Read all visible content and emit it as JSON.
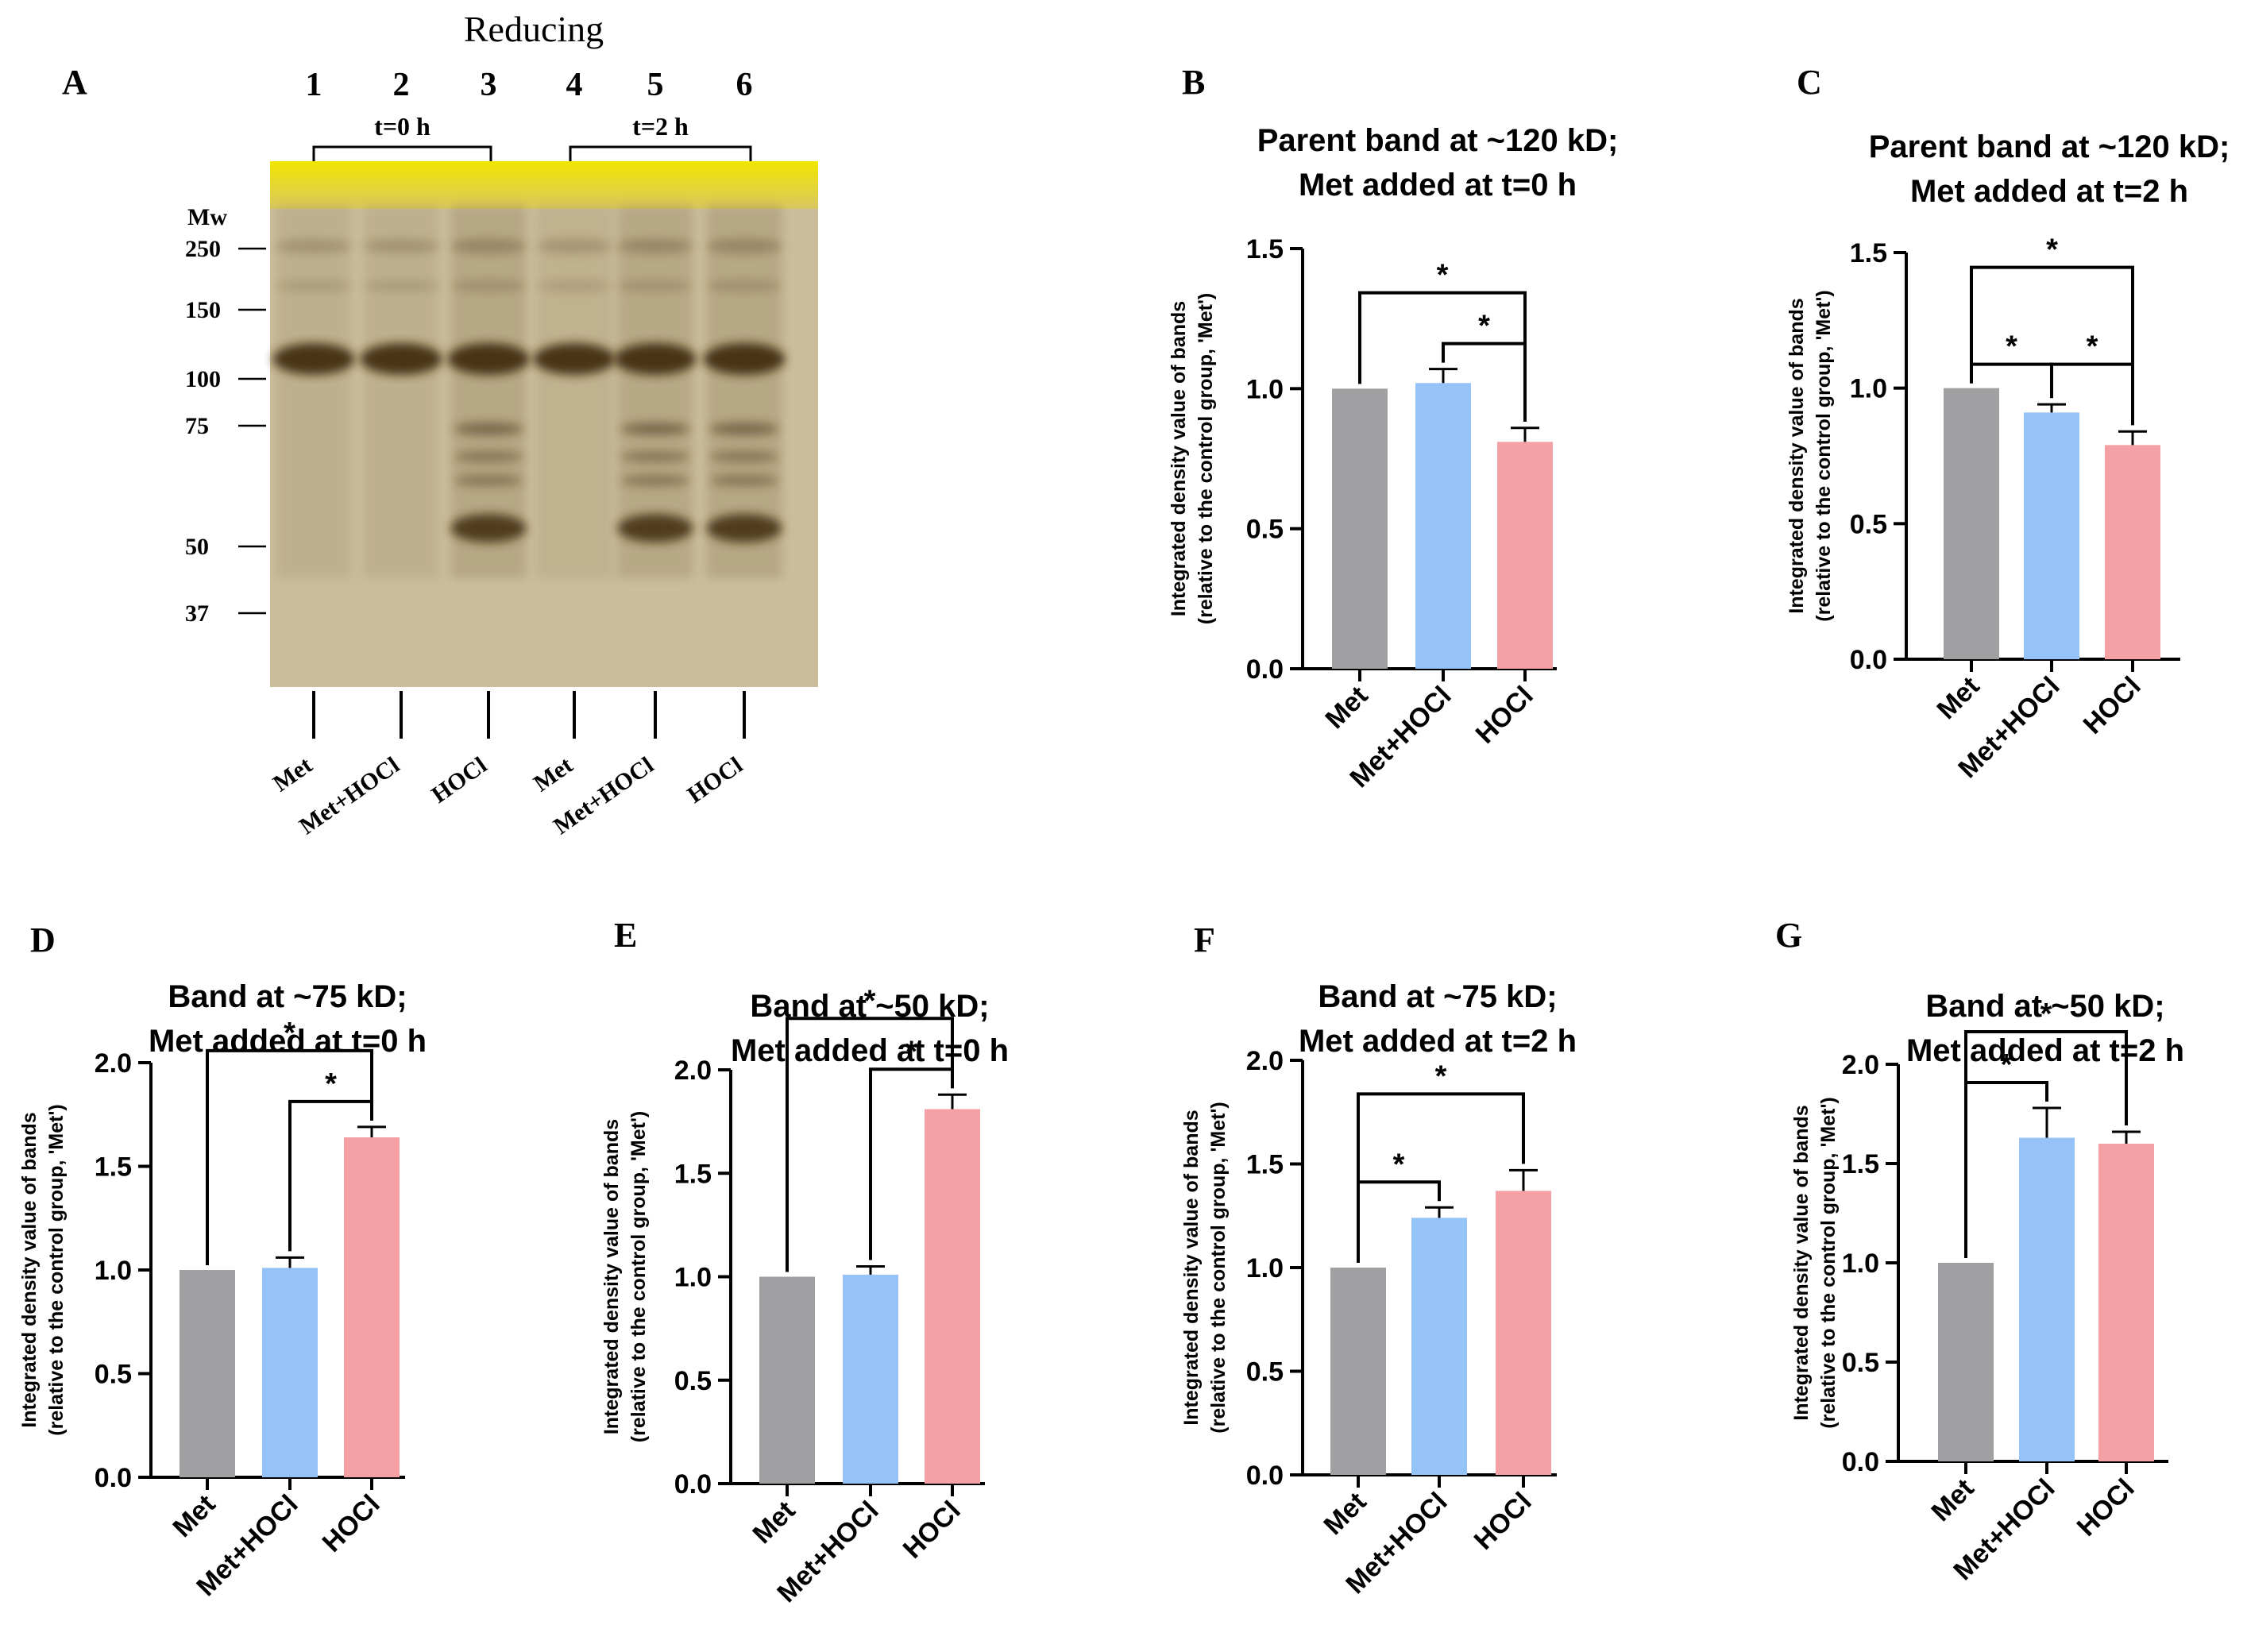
{
  "figure": {
    "gel": {
      "panel_letter": "A",
      "condition_label": "Reducing",
      "mw_label": "Mw",
      "lane_numbers": [
        "1",
        "2",
        "3",
        "4",
        "5",
        "6"
      ],
      "group_labels": [
        "t=0 h",
        "t=2 h"
      ],
      "mw_markers": [
        "250",
        "150",
        "100",
        "75",
        "50",
        "37"
      ],
      "lane_treatments": [
        "Met",
        "Met+HOCl",
        "HOCl",
        "Met",
        "Met+HOCl",
        "HOCl"
      ],
      "colors": {
        "gel_bg": "#cbbd9c",
        "gel_top": "#f2e600",
        "band": "#3f2a0c"
      }
    },
    "colors": {
      "Met": "#a0a0a2",
      "Met+HOCl": "#95c2f7",
      "HOCl": "#f5a0a4",
      "axis": "#000000"
    },
    "significance_symbol": "*"
  },
  "chart_data": [
    {
      "panel": "B",
      "type": "bar",
      "title": [
        "Parent band at ~120 kD;",
        "Met added at t=0 h"
      ],
      "ylabel": [
        "Integrated density value of bands",
        "(relative to the control group, 'Met')"
      ],
      "categories": [
        "Met",
        "Met+HOCl",
        "HOCl"
      ],
      "values": [
        1.0,
        1.02,
        0.81
      ],
      "errors": [
        0,
        0.05,
        0.05
      ],
      "ylim": [
        0,
        1.5
      ],
      "yticks": [
        "0.0",
        "0.5",
        "1.0",
        "1.5"
      ],
      "significance": [
        {
          "from": 1,
          "to": 2,
          "label": "*"
        },
        {
          "from": 0,
          "to": 2,
          "label": "*"
        }
      ]
    },
    {
      "panel": "C",
      "type": "bar",
      "title": [
        "Parent band at ~120 kD;",
        "Met added at t=2 h"
      ],
      "ylabel": [
        "Integrated density value of bands",
        "(relative to the control group, 'Met')"
      ],
      "categories": [
        "Met",
        "Met+HOCl",
        "HOCl"
      ],
      "values": [
        1.0,
        0.91,
        0.79
      ],
      "errors": [
        0,
        0.03,
        0.05
      ],
      "ylim": [
        0,
        1.5
      ],
      "yticks": [
        "0.0",
        "0.5",
        "1.0",
        "1.5"
      ],
      "significance": [
        {
          "from": 0,
          "to": 1,
          "label": "*"
        },
        {
          "from": 1,
          "to": 2,
          "label": "*"
        },
        {
          "from": 0,
          "to": 2,
          "label": "*"
        }
      ]
    },
    {
      "panel": "D",
      "type": "bar",
      "title": [
        "Band at ~75 kD;",
        "Met added at t=0 h"
      ],
      "ylabel": [
        "Integrated density value of bands",
        "(relative to the control group, 'Met')"
      ],
      "categories": [
        "Met",
        "Met+HOCl",
        "HOCl"
      ],
      "values": [
        1.0,
        1.01,
        1.64
      ],
      "errors": [
        0,
        0.05,
        0.05
      ],
      "ylim": [
        0,
        2.0
      ],
      "yticks": [
        "0.0",
        "0.5",
        "1.0",
        "1.5",
        "2.0"
      ],
      "significance": [
        {
          "from": 1,
          "to": 2,
          "label": "*"
        },
        {
          "from": 0,
          "to": 2,
          "label": "*"
        }
      ]
    },
    {
      "panel": "E",
      "type": "bar",
      "title": [
        "Band at ~50 kD;",
        "Met added at t=0 h"
      ],
      "ylabel": [
        "Integrated density value of bands",
        "(relative to the control group, 'Met')"
      ],
      "categories": [
        "Met",
        "Met+HOCl",
        "HOCl"
      ],
      "values": [
        1.0,
        1.01,
        1.81
      ],
      "errors": [
        0,
        0.04,
        0.07
      ],
      "ylim": [
        0,
        2.0
      ],
      "yticks": [
        "0.0",
        "0.5",
        "1.0",
        "1.5",
        "2.0"
      ],
      "significance": [
        {
          "from": 1,
          "to": 2,
          "label": "*"
        },
        {
          "from": 0,
          "to": 2,
          "label": "*"
        }
      ]
    },
    {
      "panel": "F",
      "type": "bar",
      "title": [
        "Band at ~75 kD;",
        "Met added at t=2 h"
      ],
      "ylabel": [
        "Integrated density value of bands",
        "(relative to the control group, 'Met')"
      ],
      "categories": [
        "Met",
        "Met+HOCl",
        "HOCl"
      ],
      "values": [
        1.0,
        1.24,
        1.37
      ],
      "errors": [
        0,
        0.05,
        0.1
      ],
      "ylim": [
        0,
        2.0
      ],
      "yticks": [
        "0.0",
        "0.5",
        "1.0",
        "1.5",
        "2.0"
      ],
      "significance": [
        {
          "from": 0,
          "to": 1,
          "label": "*"
        },
        {
          "from": 0,
          "to": 2,
          "label": "*"
        }
      ]
    },
    {
      "panel": "G",
      "type": "bar",
      "title": [
        "Band at ~50 kD;",
        "Met added at t=2 h"
      ],
      "ylabel": [
        "Integrated density value of bands",
        "(relative to the control group, 'Met')"
      ],
      "categories": [
        "Met",
        "Met+HOCl",
        "HOCl"
      ],
      "values": [
        1.0,
        1.63,
        1.6
      ],
      "errors": [
        0,
        0.15,
        0.06
      ],
      "ylim": [
        0,
        2.0
      ],
      "yticks": [
        "0.0",
        "0.5",
        "1.0",
        "1.5",
        "2.0"
      ],
      "significance": [
        {
          "from": 0,
          "to": 1,
          "label": "*"
        },
        {
          "from": 0,
          "to": 2,
          "label": "*"
        }
      ]
    }
  ]
}
